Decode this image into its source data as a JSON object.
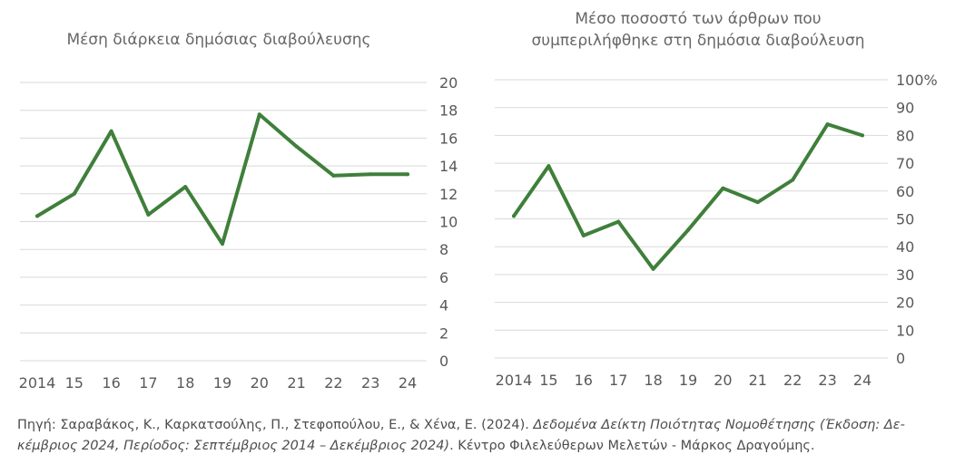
{
  "chart_data": [
    {
      "type": "line",
      "title": "Μέση διάρκεια δημόσιας διαβούλευσης",
      "categories": [
        "2014",
        "15",
        "16",
        "17",
        "18",
        "19",
        "20",
        "21",
        "22",
        "23",
        "24"
      ],
      "values": [
        10.4,
        12,
        16.5,
        10.5,
        12.5,
        8.4,
        17.7,
        15.4,
        13.3,
        13.4,
        13.4
      ],
      "yticks": [
        "0",
        "2",
        "4",
        "6",
        "8",
        "10",
        "12",
        "14",
        "16",
        "18",
        "20"
      ],
      "ylim": [
        0,
        20
      ],
      "xlabel": "",
      "ylabel": "",
      "color": "#3f7f3a"
    },
    {
      "type": "line",
      "title": "Μέσο ποσοστό των άρθρων που συμπεριλήφθηκε στη δημόσια διαβούλευση",
      "title_lines": [
        "Μέσο ποσοστό των άρθρων που",
        "συμπεριλήφθηκε στη δημόσια διαβούλευση"
      ],
      "categories": [
        "2014",
        "15",
        "16",
        "17",
        "18",
        "19",
        "20",
        "21",
        "22",
        "23",
        "24"
      ],
      "values": [
        51,
        69,
        44,
        49,
        32,
        46,
        61,
        56,
        64,
        84,
        80
      ],
      "yticks": [
        "0",
        "10",
        "20",
        "30",
        "40",
        "50",
        "60",
        "70",
        "80",
        "90",
        "100%"
      ],
      "ylim": [
        0,
        100
      ],
      "xlabel": "",
      "ylabel": "",
      "color": "#3f7f3a"
    }
  ],
  "source": {
    "prefix": "Πηγή: Σαραβάκος, Κ., Καρκατσούλης, Π., Στεφοπούλου, Ε., & Χένα, Ε. (2024). ",
    "title_part1": "Δεδομένα Δείκτη Ποιότητας Νομοθέτησης (Έκδοση: Δε-",
    "title_part2": "κέμβριος 2024, Περίοδος: Σεπτέμβριος 2014 – Δεκέμβριος 2024)",
    "suffix": ". Κέντρο Φιλελεύθερων Μελετών - Μάρκος Δραγούμης."
  }
}
